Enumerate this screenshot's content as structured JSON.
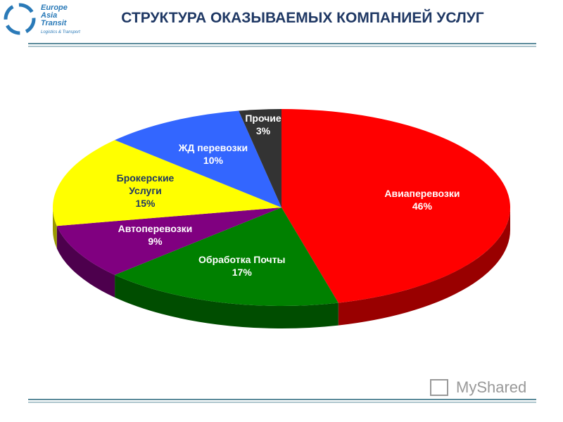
{
  "logo": {
    "lines": [
      "Europe",
      "Asia",
      "Transit"
    ],
    "tagline": "Logistics & Transport"
  },
  "watermark": "MyShared",
  "chart_data": {
    "type": "pie",
    "title": "СТРУКТУРА ОКАЗЫВАЕМЫХ КОМПАНИЕЙ УСЛУГ",
    "categories": [
      "Авиаперевозки",
      "Обработка Почты",
      "Автоперевозки",
      "Брокерские Услуги",
      "ЖД перевозки",
      "Прочие"
    ],
    "values": [
      46,
      17,
      9,
      15,
      10,
      3
    ],
    "value_labels": [
      "46%",
      "17%",
      "9%",
      "15%",
      "10%",
      "3%"
    ],
    "colors": [
      "#ff0000",
      "#008000",
      "#800080",
      "#ffff00",
      "#3366ff",
      "#333333"
    ]
  }
}
